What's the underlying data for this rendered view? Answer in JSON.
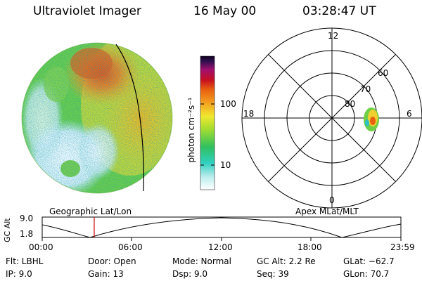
{
  "header": {
    "instrument": "Ultraviolet Imager",
    "date": "16 May 00",
    "time": "03:28:47 UT"
  },
  "colorbar": {
    "unit_label": "photon cm⁻²s⁻¹",
    "ticks": [
      "100",
      "10"
    ]
  },
  "polar_plot": {
    "mlt_labels": {
      "top": "12",
      "left": "18",
      "right": "6",
      "bottom": "0"
    },
    "lat_labels": [
      "60",
      "70",
      "80"
    ]
  },
  "panel_labels": {
    "left": "Geographic Lat/Lon",
    "right": "Apex MLat/MLT"
  },
  "orbit_plot": {
    "ylabel": "GC Alt",
    "yticks": [
      "9.0",
      "1.8"
    ],
    "xticks": [
      "00:00",
      "06:00",
      "12:00",
      "18:00",
      "23:59"
    ],
    "current_time_fraction": 0.145
  },
  "info": {
    "flt": "Flt: LBHL",
    "ip": "IP:  9.0",
    "door": "Door: Open",
    "gain": "Gain: 13",
    "mode": "Mode: Normal",
    "dsp": "Dsp:    9.0",
    "gcalt": "GC Alt: 2.2 Re",
    "seq": "Seq: 39",
    "glat": "GLat: −62.7",
    "glon": "GLon: 70.7"
  },
  "colors": {
    "accent_red": "#cc0000"
  }
}
